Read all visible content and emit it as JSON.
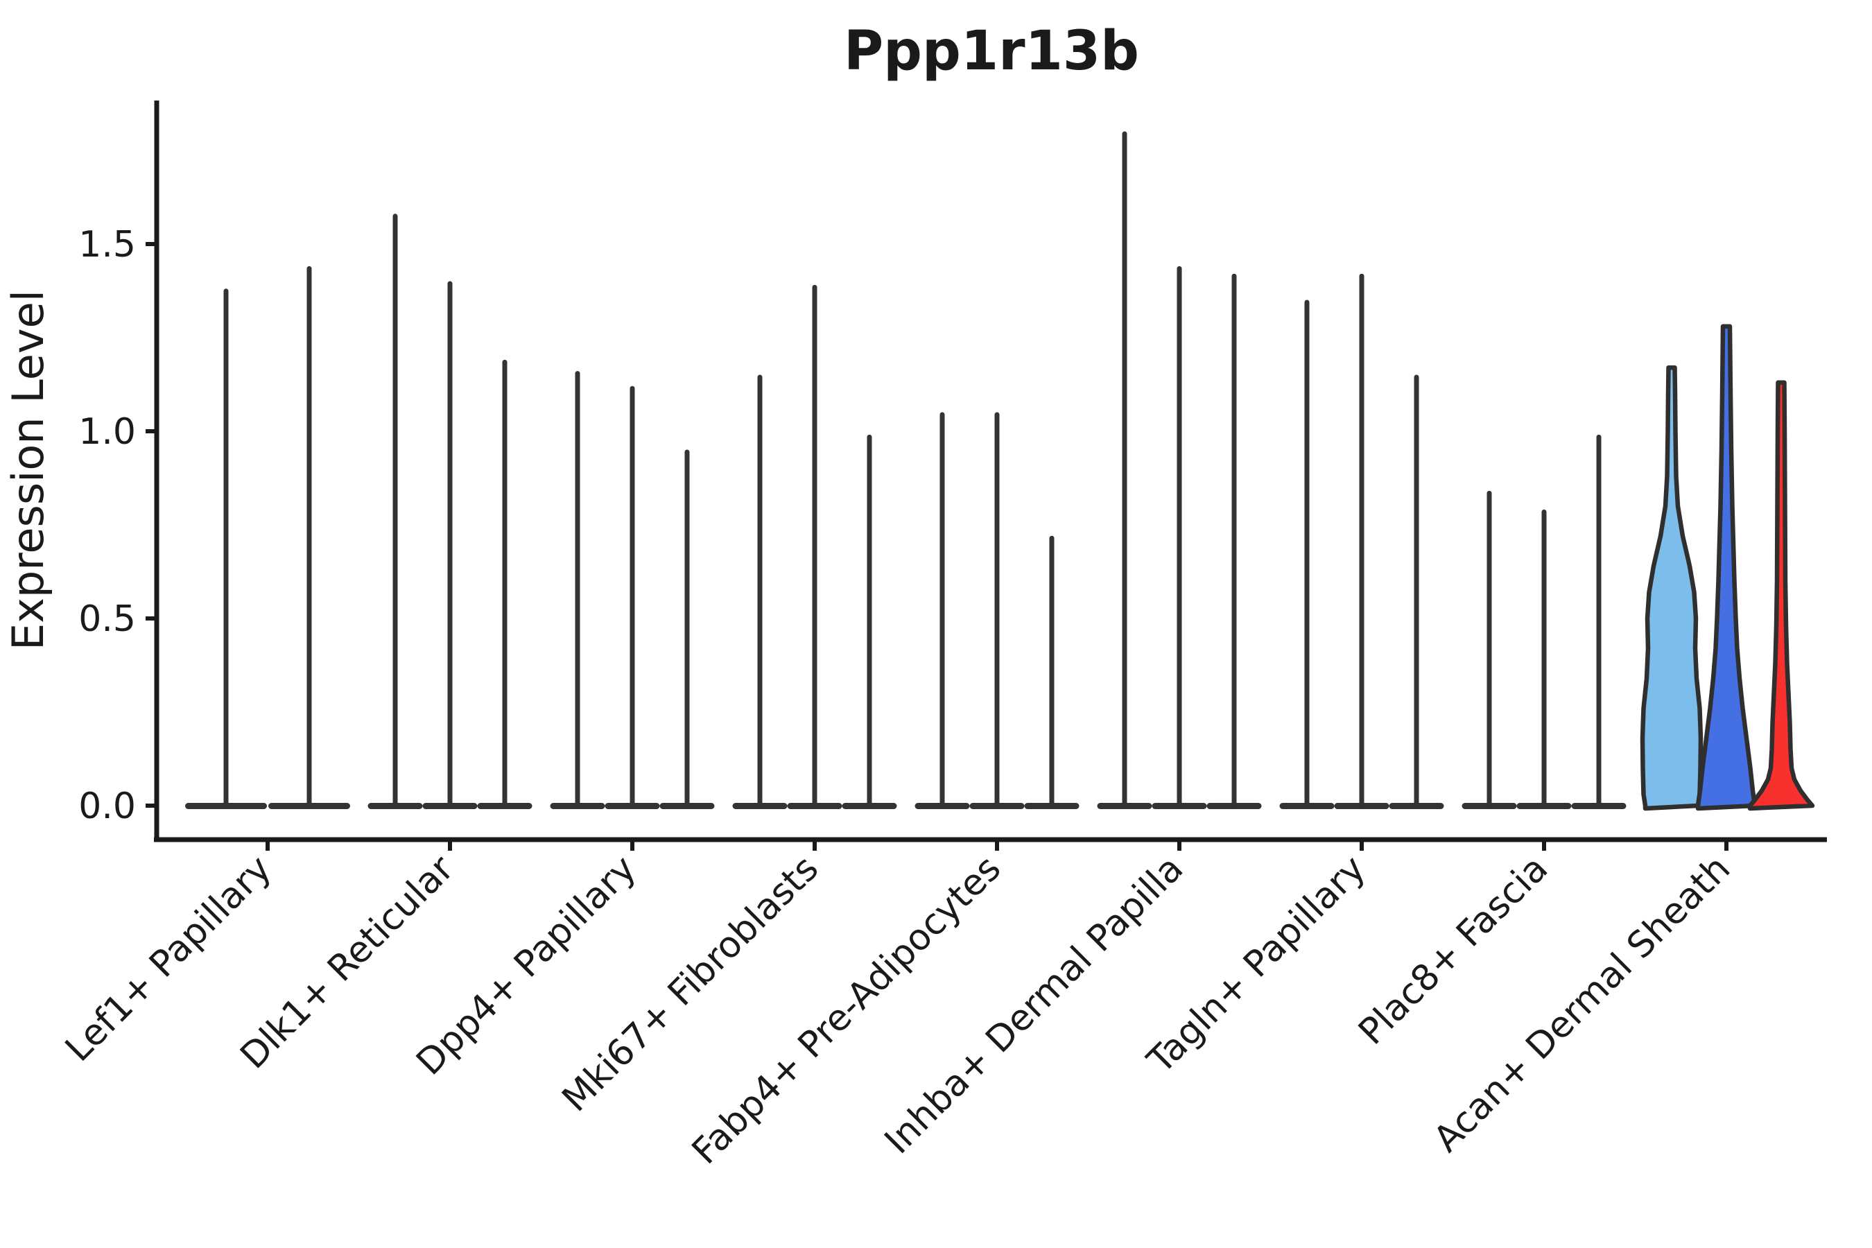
{
  "figure": {
    "title": "Ppp1r13b",
    "ylabel": "Expression Level"
  },
  "colors": {
    "axis": "#1a1a1a",
    "violin_edge": "#2f2f2f",
    "thin_violin": "#333333",
    "sky_blue_fill": "#7CBDEB",
    "royal_blue_fill": "#4470E4",
    "red_fill": "#F8312E"
  },
  "chart_data": {
    "type": "violin",
    "title": "Ppp1r13b",
    "xlabel": "",
    "ylabel": "Expression Level",
    "ylim": [
      0,
      1.88
    ],
    "yticks": [
      "0.0",
      "0.5",
      "1.0",
      "1.5"
    ],
    "ytick_values": [
      0.0,
      0.5,
      1.0,
      1.5
    ],
    "grid": false,
    "legend": "none",
    "categories": [
      "Lef1+ Papillary",
      "Dlk1+ Reticular",
      "Dpp4+ Papillary",
      "Mki67+ Fibroblasts",
      "Fabp4+ Pre-Adipocytes",
      "Inhba+ Dermal Papilla",
      "Tagln+ Papillary",
      "Plac8+ Fascia",
      "Acan+ Dermal Sheath"
    ],
    "groups": [
      {
        "category": "Lef1+ Papillary",
        "violins": [
          {
            "max": 1.38
          },
          {
            "max": 1.44
          }
        ]
      },
      {
        "category": "Dlk1+ Reticular",
        "violins": [
          {
            "max": 1.58
          },
          {
            "max": 1.4
          },
          {
            "max": 1.19
          }
        ]
      },
      {
        "category": "Dpp4+ Papillary",
        "violins": [
          {
            "max": 1.16
          },
          {
            "max": 1.12
          },
          {
            "max": 0.95
          }
        ]
      },
      {
        "category": "Mki67+ Fibroblasts",
        "violins": [
          {
            "max": 1.15
          },
          {
            "max": 1.39
          },
          {
            "max": 0.99
          }
        ]
      },
      {
        "category": "Fabp4+ Pre-Adipocytes",
        "violins": [
          {
            "max": 1.05
          },
          {
            "max": 1.05
          },
          {
            "max": 0.72
          }
        ]
      },
      {
        "category": "Inhba+ Dermal Papilla",
        "violins": [
          {
            "max": 1.8
          },
          {
            "max": 1.44
          },
          {
            "max": 1.42
          }
        ]
      },
      {
        "category": "Tagln+ Papillary",
        "violins": [
          {
            "max": 1.35
          },
          {
            "max": 1.42
          },
          {
            "max": 1.15
          }
        ]
      },
      {
        "category": "Plac8+ Fascia",
        "violins": [
          {
            "max": 0.84
          },
          {
            "max": 0.79
          },
          {
            "max": 0.99
          }
        ]
      },
      {
        "category": "Acan+ Dermal Sheath",
        "violins": [
          {
            "max": 1.17,
            "fill": "#7CBDEB",
            "profile": [
              [
                0,
                38
              ],
              [
                0.03,
                40.5
              ],
              [
                0.1,
                41.5
              ],
              [
                0.18,
                42
              ],
              [
                0.26,
                40.5
              ],
              [
                0.34,
                36
              ],
              [
                0.42,
                34
              ],
              [
                0.5,
                35
              ],
              [
                0.57,
                32.5
              ],
              [
                0.64,
                26
              ],
              [
                0.72,
                16
              ],
              [
                0.8,
                9
              ],
              [
                0.88,
                6.5
              ],
              [
                1.0,
                5.5
              ],
              [
                1.1,
                5
              ],
              [
                1.17,
                4.5
              ]
            ]
          },
          {
            "max": 1.28,
            "fill": "#4470E4",
            "profile": [
              [
                0,
                41
              ],
              [
                0.04,
                38
              ],
              [
                0.1,
                34.5
              ],
              [
                0.18,
                29
              ],
              [
                0.26,
                23.5
              ],
              [
                0.34,
                19
              ],
              [
                0.42,
                15.5
              ],
              [
                0.5,
                13.5
              ],
              [
                0.6,
                11.5
              ],
              [
                0.7,
                10
              ],
              [
                0.8,
                8.5
              ],
              [
                0.95,
                7
              ],
              [
                1.1,
                6
              ],
              [
                1.28,
                5
              ]
            ]
          },
          {
            "max": 1.13,
            "fill": "#F8312E",
            "profile": [
              [
                0,
                45
              ],
              [
                0.015,
                38
              ],
              [
                0.04,
                28
              ],
              [
                0.07,
                19
              ],
              [
                0.1,
                15
              ],
              [
                0.15,
                13.5
              ],
              [
                0.22,
                12.5
              ],
              [
                0.3,
                10.5
              ],
              [
                0.38,
                8.5
              ],
              [
                0.48,
                7
              ],
              [
                0.6,
                6
              ],
              [
                0.8,
                5.5
              ],
              [
                1.0,
                5
              ],
              [
                1.13,
                4.5
              ]
            ]
          }
        ]
      }
    ]
  }
}
